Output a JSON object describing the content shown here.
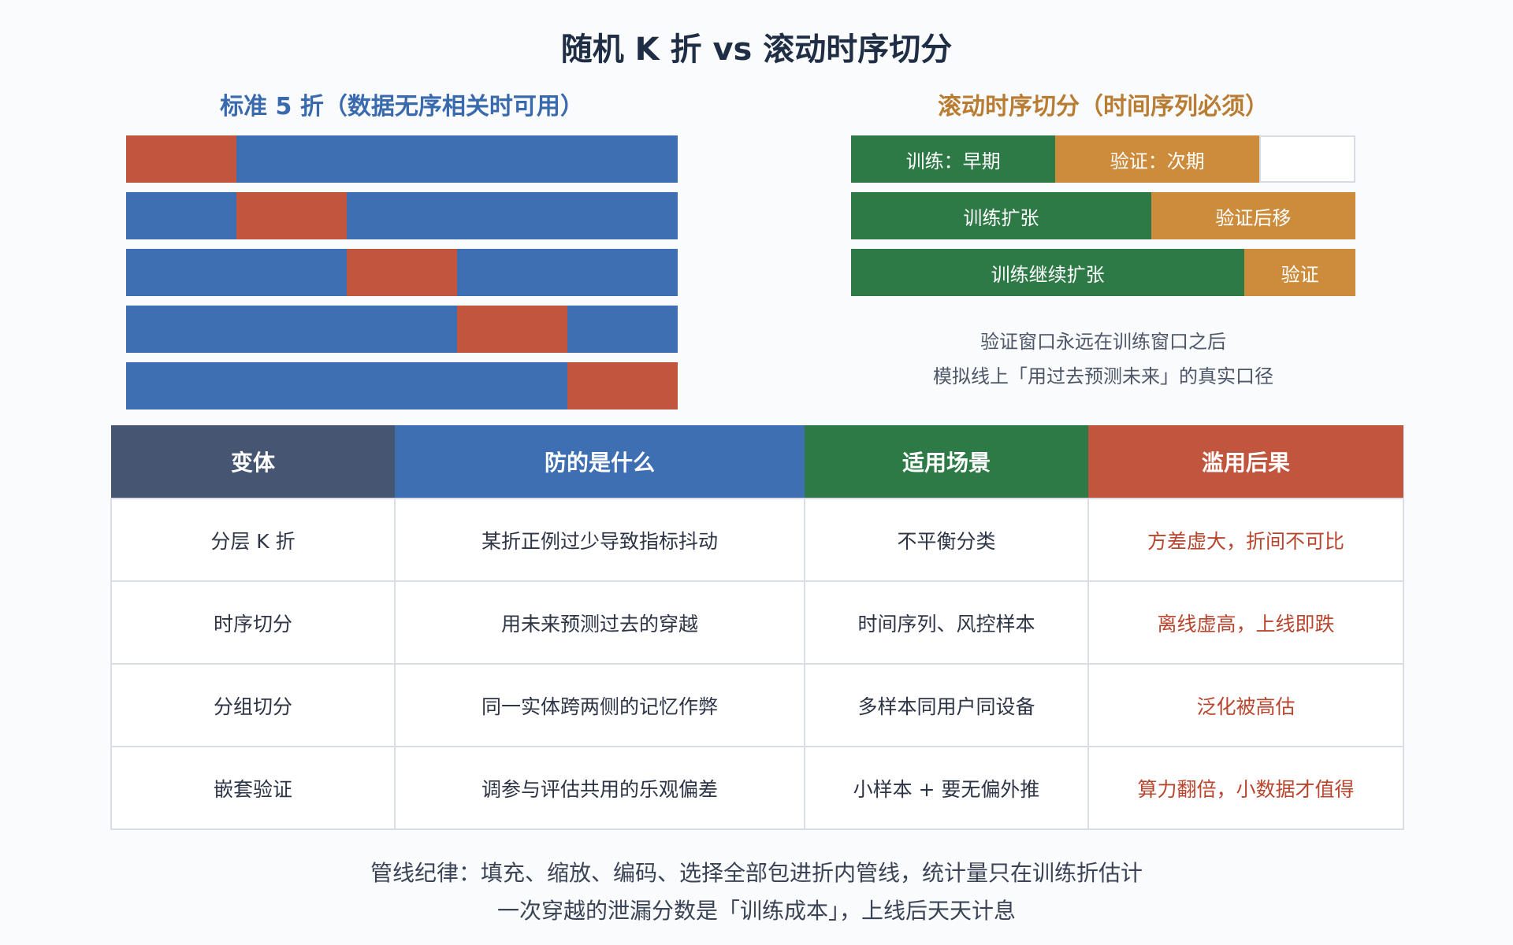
{
  "title": "随机 K 折 vs 滚动时序切分",
  "left": {
    "subtitle": "标准 5 折（数据无序相关时可用）",
    "folds": [
      {
        "val_fold": 1
      },
      {
        "val_fold": 2
      },
      {
        "val_fold": 3
      },
      {
        "val_fold": 4
      },
      {
        "val_fold": 5
      }
    ],
    "fold_count": 5,
    "colors": {
      "train": "#3d6fb2",
      "validation": "#c2553d"
    }
  },
  "right": {
    "subtitle": "滚动时序切分（时间序列必须）",
    "rows": [
      {
        "train_label": "训练：早期",
        "val_label": "验证：次期",
        "train_share": 0.405,
        "val_share": 0.405,
        "has_empty": true
      },
      {
        "train_label": "训练扩张",
        "val_label": "验证后移",
        "train_share": 0.595,
        "val_share": 0.405,
        "has_empty": false
      },
      {
        "train_label": "训练继续扩张",
        "val_label": "验证",
        "train_share": 0.78,
        "val_share": 0.22,
        "has_empty": false
      }
    ],
    "note_lines": [
      "验证窗口永远在训练窗口之后",
      "模拟线上「用过去预测未来」的真实口径"
    ],
    "colors": {
      "train": "#2e7a47",
      "validation": "#cc8c3c"
    }
  },
  "table": {
    "headers": [
      {
        "label": "变体",
        "color": "#465571"
      },
      {
        "label": "防的是什么",
        "color": "#3d6fb2"
      },
      {
        "label": "适用场景",
        "color": "#2e7a47"
      },
      {
        "label": "滥用后果",
        "color": "#c2553d"
      }
    ],
    "rows": [
      [
        "分层 K 折",
        "某折正例过少导致指标抖动",
        "不平衡分类",
        "方差虚大，折间不可比"
      ],
      [
        "时序切分",
        "用未来预测过去的穿越",
        "时间序列、风控样本",
        "离线虚高，上线即跌"
      ],
      [
        "分组切分",
        "同一实体跨两侧的记忆作弊",
        "多样本同用户同设备",
        "泛化被高估"
      ],
      [
        "嵌套验证",
        "调参与评估共用的乐观偏差",
        "小样本 + 要无偏外推",
        "算力翻倍，小数据才值得"
      ]
    ]
  },
  "footer_lines": [
    "管线纪律：填充、缩放、编码、选择全部包进折内管线，统计量只在训练折估计",
    "一次穿越的泄漏分数是「训练成本」，上线后天天计息"
  ]
}
